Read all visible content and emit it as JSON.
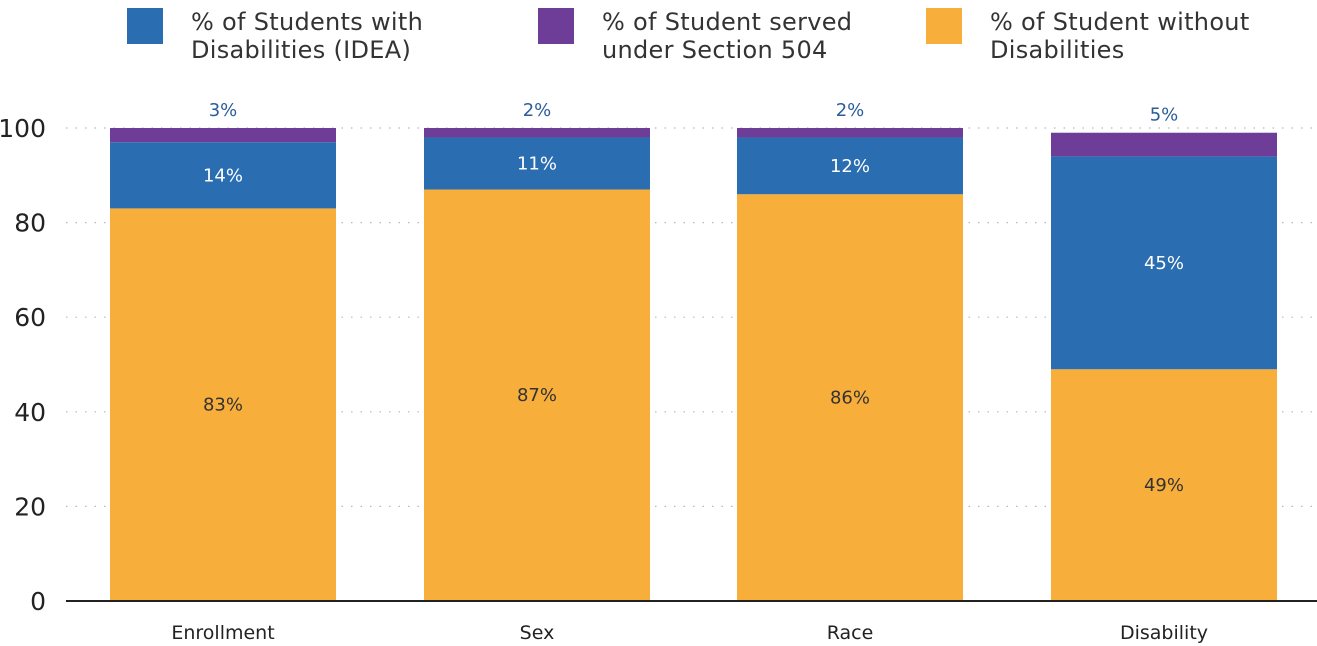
{
  "legend": [
    {
      "label": "% of Students with Disabilities (IDEA)",
      "color": "#2a6db0"
    },
    {
      "label": "% of Student served under Section 504",
      "color": "#6e3d97"
    },
    {
      "label": "% of Student without Disabilities",
      "color": "#f8ae3b"
    }
  ],
  "chart_data": {
    "type": "bar",
    "stacked": true,
    "orientation": "vertical",
    "categories": [
      "Enrollment",
      "Sex",
      "Race",
      "Disability"
    ],
    "series": [
      {
        "name": "% of Student without Disabilities",
        "values": [
          83,
          87,
          86,
          49
        ],
        "labels": [
          "83%",
          "87%",
          "86%",
          "49%"
        ],
        "color": "#f8ae3b"
      },
      {
        "name": "% of Students with Disabilities (IDEA)",
        "values": [
          14,
          11,
          12,
          45
        ],
        "labels": [
          "14%",
          "11%",
          "12%",
          "45%"
        ],
        "color": "#2a6db0"
      },
      {
        "name": "% of Student served under Section 504",
        "values": [
          3,
          2,
          2,
          5
        ],
        "labels": [
          "3%",
          "2%",
          "2%",
          "5%"
        ],
        "color": "#6e3d97"
      }
    ],
    "y_ticks": [
      "0",
      "20",
      "40",
      "60",
      "80",
      "100"
    ],
    "ylim": [
      0,
      100
    ],
    "grid": "dotted horizontal",
    "legend_position": "top",
    "title": "",
    "xlabel": "",
    "ylabel": ""
  }
}
